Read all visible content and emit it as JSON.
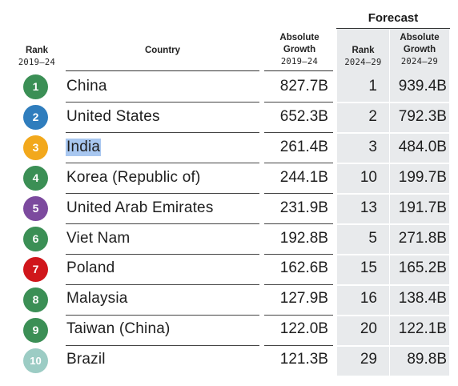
{
  "headers": {
    "forecast": "Forecast",
    "rank_title": "Rank",
    "rank_period": "2019–24",
    "country": "Country",
    "abs_line1": "Absolute",
    "abs_line2": "Growth",
    "abs_period": "2019–24",
    "frank_title": "Rank",
    "frank_period": "2024–29",
    "fgrowth_line1": "Absolute",
    "fgrowth_line2": "Growth",
    "fgrowth_period": "2024–29"
  },
  "colors": {
    "forecast_shade": "#e8eaec",
    "selection_highlight": "#a8c7f0"
  },
  "rows": [
    {
      "rank": "1",
      "country": "China",
      "abs_growth": "827.7B",
      "forecast_rank": "1",
      "forecast_growth": "939.4B",
      "badge_color": "#3b8f55"
    },
    {
      "rank": "2",
      "country": "United States",
      "abs_growth": "652.3B",
      "forecast_rank": "2",
      "forecast_growth": "792.3B",
      "badge_color": "#2f7dbd"
    },
    {
      "rank": "3",
      "country": "India",
      "abs_growth": "261.4B",
      "forecast_rank": "3",
      "forecast_growth": "484.0B",
      "badge_color": "#f2a81c",
      "selected": true
    },
    {
      "rank": "4",
      "country": "Korea (Republic of)",
      "abs_growth": "244.1B",
      "forecast_rank": "10",
      "forecast_growth": "199.7B",
      "badge_color": "#3b8f55"
    },
    {
      "rank": "5",
      "country": "United Arab Emirates",
      "abs_growth": "231.9B",
      "forecast_rank": "13",
      "forecast_growth": "191.7B",
      "badge_color": "#7c4a9e"
    },
    {
      "rank": "6",
      "country": "Viet Nam",
      "abs_growth": "192.8B",
      "forecast_rank": "5",
      "forecast_growth": "271.8B",
      "badge_color": "#3b8f55"
    },
    {
      "rank": "7",
      "country": "Poland",
      "abs_growth": "162.6B",
      "forecast_rank": "15",
      "forecast_growth": "165.2B",
      "badge_color": "#d0161b"
    },
    {
      "rank": "8",
      "country": "Malaysia",
      "abs_growth": "127.9B",
      "forecast_rank": "16",
      "forecast_growth": "138.4B",
      "badge_color": "#3b8f55"
    },
    {
      "rank": "9",
      "country": "Taiwan (China)",
      "abs_growth": "122.0B",
      "forecast_rank": "20",
      "forecast_growth": "122.1B",
      "badge_color": "#3b8f55"
    },
    {
      "rank": "10",
      "country": "Brazil",
      "abs_growth": "121.3B",
      "forecast_rank": "29",
      "forecast_growth": "89.8B",
      "badge_color": "#9cccc4"
    }
  ]
}
